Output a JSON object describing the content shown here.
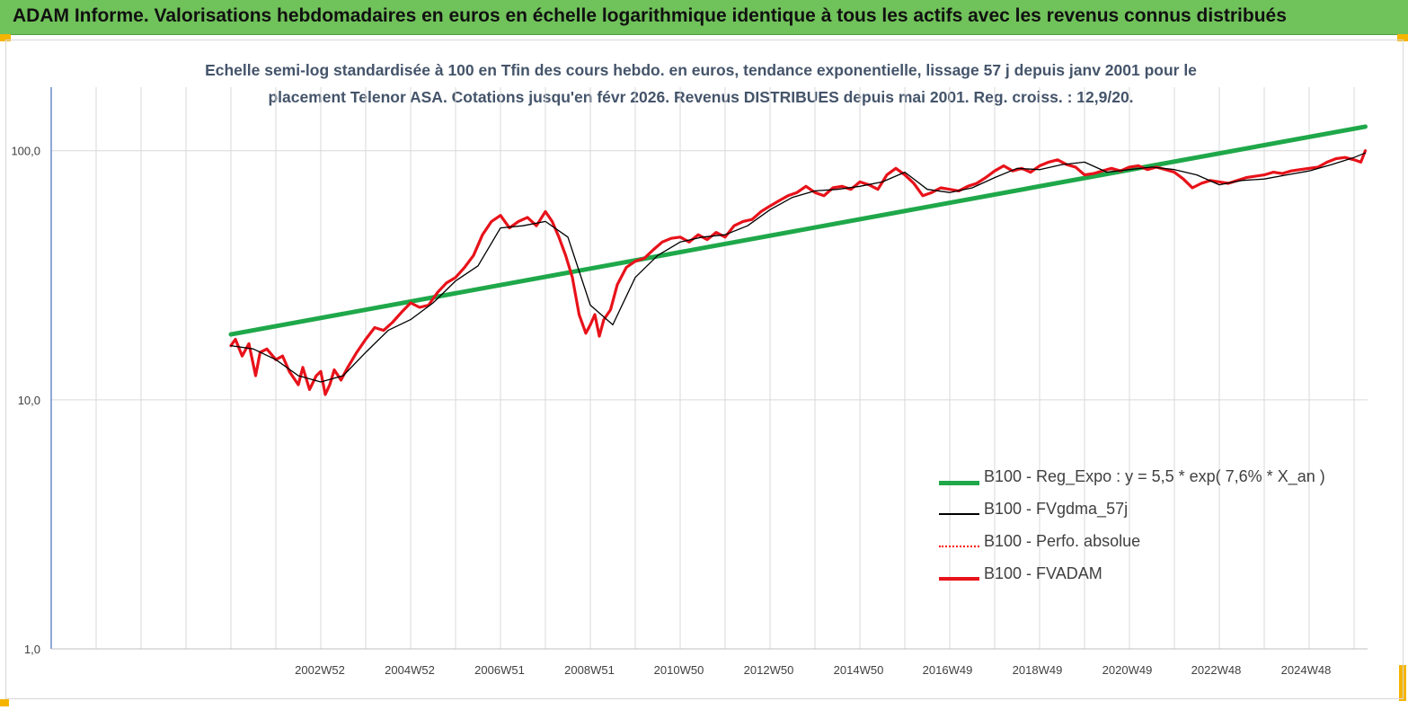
{
  "header": {
    "title": "ADAM Informe. Valorisations hebdomadaires en euros en échelle logarithmique identique à tous les actifs avec les revenus connus distribués"
  },
  "colors": {
    "header_bg": "#70c25a",
    "regression": "#1fa84a",
    "fvgdma": "#000000",
    "perfo": "#ff0000",
    "fvadam": "#e8121a",
    "axis": "#6a8cc8",
    "grid": "#d9d9d9"
  },
  "chart_data": {
    "type": "line",
    "title_line1": "Echelle semi-log standardisée à 100 en Tfin des cours hebdo. en euros, tendance exponentielle, lissage 57 j depuis janv 2001 pour le",
    "title_line2": "placement Telenor ASA. Cotations jusqu'en févr 2026. Revenus DISTRIBUES depuis mai 2001.  Reg. croiss. : 12,9/20.",
    "yscale": "log",
    "ylim": [
      1,
      200
    ],
    "y_ticks": [
      {
        "value": 1,
        "label": "1,0"
      },
      {
        "value": 10,
        "label": "10,0"
      },
      {
        "value": 100,
        "label": "100,0"
      }
    ],
    "xlim": [
      1997.0,
      2026.3
    ],
    "x_ticks": [
      {
        "value": 2002.98,
        "label": "2002W52"
      },
      {
        "value": 2004.98,
        "label": "2004W52"
      },
      {
        "value": 2006.98,
        "label": "2006W51"
      },
      {
        "value": 2008.98,
        "label": "2008W51"
      },
      {
        "value": 2010.97,
        "label": "2010W50"
      },
      {
        "value": 2012.97,
        "label": "2012W50"
      },
      {
        "value": 2014.97,
        "label": "2014W50"
      },
      {
        "value": 2016.95,
        "label": "2016W49"
      },
      {
        "value": 2018.95,
        "label": "2018W49"
      },
      {
        "value": 2020.95,
        "label": "2020W49"
      },
      {
        "value": 2022.93,
        "label": "2022W48"
      },
      {
        "value": 2024.93,
        "label": "2024W48"
      }
    ],
    "grid": true,
    "legend_position": "bottom-right",
    "series": [
      {
        "name": "B100 - Reg_Expo : y = 5,5 * exp( 7,6% *  X_an )",
        "style": "thick",
        "x": [
          2001.0,
          2026.25
        ],
        "y": [
          18.3,
          125.0
        ]
      },
      {
        "name": "B100 - FVgdma_57j",
        "style": "thin",
        "x": [
          2001.0,
          2001.5,
          2002.0,
          2002.5,
          2003.0,
          2003.5,
          2004.0,
          2004.5,
          2005.0,
          2005.5,
          2006.0,
          2006.5,
          2007.0,
          2007.5,
          2008.0,
          2008.5,
          2009.0,
          2009.5,
          2010.0,
          2010.5,
          2011.0,
          2011.5,
          2012.0,
          2012.5,
          2013.0,
          2013.5,
          2014.0,
          2014.5,
          2015.0,
          2015.5,
          2016.0,
          2016.5,
          2017.0,
          2017.5,
          2018.0,
          2018.5,
          2019.0,
          2019.5,
          2020.0,
          2020.5,
          2021.0,
          2021.5,
          2022.0,
          2022.5,
          2023.0,
          2023.5,
          2024.0,
          2024.5,
          2025.0,
          2025.5,
          2026.0,
          2026.25
        ],
        "y": [
          16.5,
          16.0,
          14.5,
          12.5,
          11.8,
          12.5,
          15.5,
          19.0,
          21.0,
          24.5,
          30.0,
          34.5,
          49.0,
          50.0,
          52.0,
          45.0,
          24.0,
          20.0,
          31.0,
          38.0,
          43.0,
          45.0,
          46.0,
          50.0,
          58.0,
          65.0,
          69.0,
          70.0,
          72.0,
          75.0,
          82.0,
          70.0,
          68.0,
          71.0,
          78.0,
          85.0,
          84.0,
          88.0,
          90.0,
          82.0,
          84.0,
          86.0,
          84.0,
          80.0,
          73.0,
          76.0,
          77.0,
          80.0,
          83.0,
          88.0,
          94.0,
          98.0
        ]
      },
      {
        "name": "B100 - Perfo. absolue",
        "style": "dotted",
        "x": [],
        "y": []
      },
      {
        "name": "B100 - FVADAM",
        "style": "medium",
        "x": [
          2001.0,
          2001.1,
          2001.25,
          2001.4,
          2001.55,
          2001.65,
          2001.8,
          2002.0,
          2002.15,
          2002.3,
          2002.5,
          2002.6,
          2002.75,
          2002.9,
          2003.0,
          2003.1,
          2003.2,
          2003.3,
          2003.45,
          2003.6,
          2003.8,
          2004.0,
          2004.2,
          2004.4,
          2004.6,
          2004.8,
          2005.0,
          2005.2,
          2005.4,
          2005.6,
          2005.8,
          2006.0,
          2006.2,
          2006.4,
          2006.6,
          2006.8,
          2007.0,
          2007.2,
          2007.4,
          2007.6,
          2007.8,
          2008.0,
          2008.15,
          2008.3,
          2008.45,
          2008.6,
          2008.75,
          2008.9,
          2009.0,
          2009.1,
          2009.2,
          2009.3,
          2009.45,
          2009.6,
          2009.8,
          2010.0,
          2010.2,
          2010.4,
          2010.6,
          2010.8,
          2011.0,
          2011.2,
          2011.4,
          2011.6,
          2011.8,
          2012.0,
          2012.2,
          2012.4,
          2012.6,
          2012.8,
          2013.0,
          2013.2,
          2013.4,
          2013.6,
          2013.8,
          2014.0,
          2014.2,
          2014.4,
          2014.6,
          2014.8,
          2015.0,
          2015.2,
          2015.4,
          2015.6,
          2015.8,
          2016.0,
          2016.2,
          2016.4,
          2016.6,
          2016.8,
          2017.0,
          2017.2,
          2017.4,
          2017.6,
          2017.8,
          2018.0,
          2018.2,
          2018.4,
          2018.6,
          2018.8,
          2019.0,
          2019.2,
          2019.4,
          2019.6,
          2019.8,
          2020.0,
          2020.2,
          2020.4,
          2020.6,
          2020.8,
          2021.0,
          2021.2,
          2021.4,
          2021.6,
          2021.8,
          2022.0,
          2022.2,
          2022.4,
          2022.6,
          2022.8,
          2023.0,
          2023.2,
          2023.4,
          2023.6,
          2023.8,
          2024.0,
          2024.2,
          2024.4,
          2024.6,
          2024.8,
          2025.0,
          2025.2,
          2025.4,
          2025.6,
          2025.8,
          2026.0,
          2026.15,
          2026.25
        ],
        "y": [
          16.5,
          17.5,
          15.0,
          16.8,
          12.5,
          15.5,
          16.0,
          14.5,
          15.0,
          13.0,
          11.5,
          13.5,
          11.0,
          12.5,
          13.0,
          10.5,
          11.5,
          13.2,
          12.0,
          13.5,
          15.5,
          17.5,
          19.5,
          19.0,
          20.5,
          22.5,
          24.5,
          23.5,
          24.0,
          27.0,
          29.5,
          31.0,
          34.0,
          38.0,
          46.0,
          52.0,
          55.0,
          49.0,
          52.0,
          54.0,
          50.0,
          57.0,
          52.0,
          45.0,
          38.0,
          31.0,
          22.0,
          18.5,
          20.0,
          22.0,
          18.0,
          21.0,
          23.0,
          29.0,
          34.0,
          36.0,
          37.0,
          40.0,
          43.0,
          44.5,
          45.0,
          43.0,
          46.0,
          44.0,
          47.0,
          45.0,
          50.0,
          52.0,
          53.0,
          57.0,
          60.0,
          63.0,
          66.0,
          68.0,
          72.0,
          68.0,
          66.0,
          71.0,
          72.0,
          70.0,
          75.0,
          73.0,
          70.0,
          80.0,
          85.0,
          80.0,
          74.0,
          66.0,
          68.0,
          71.0,
          70.0,
          69.0,
          72.0,
          74.0,
          78.0,
          83.0,
          87.0,
          83.0,
          85.0,
          82.0,
          87.0,
          90.0,
          92.0,
          88.0,
          86.0,
          80.0,
          81.0,
          83.0,
          85.0,
          83.0,
          86.0,
          87.0,
          84.0,
          86.0,
          84.0,
          82.0,
          77.0,
          71.0,
          74.0,
          76.0,
          75.0,
          74.0,
          76.0,
          78.0,
          79.0,
          80.0,
          82.0,
          81.0,
          83.0,
          84.0,
          85.0,
          86.0,
          90.0,
          93.0,
          94.0,
          92.0,
          90.0,
          100.0
        ]
      }
    ]
  }
}
